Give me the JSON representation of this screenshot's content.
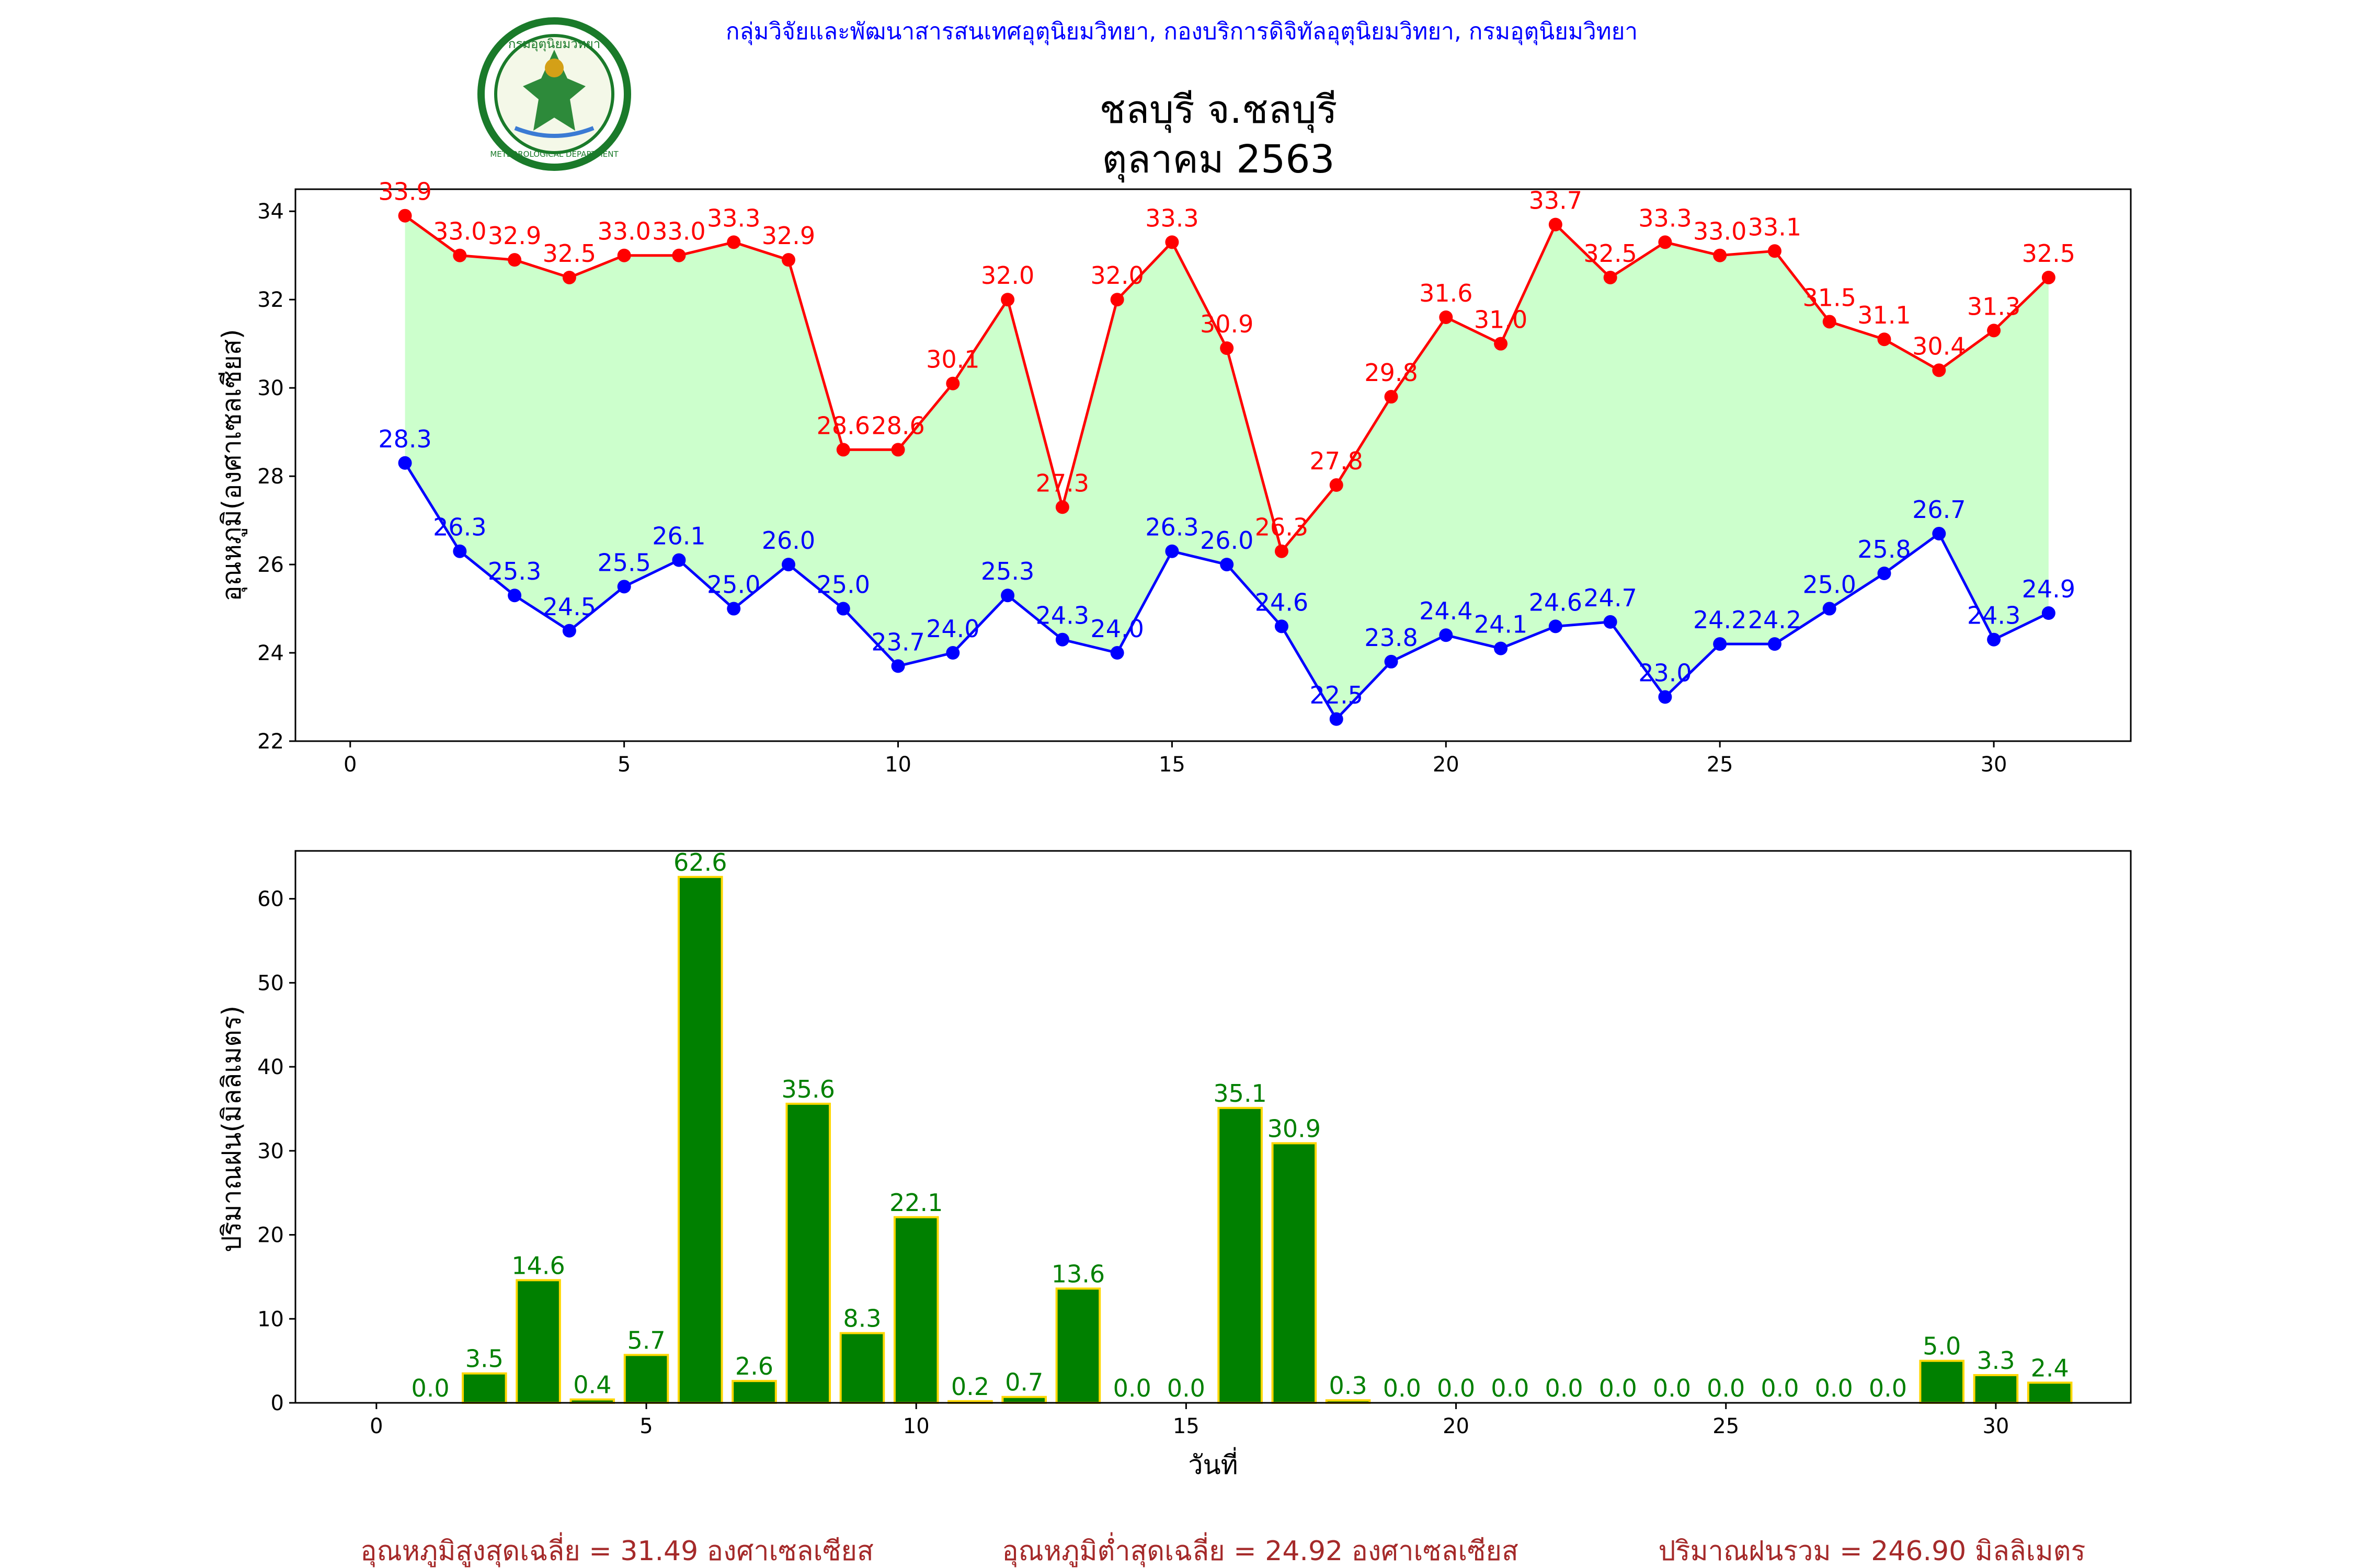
{
  "header": {
    "agency": "กลุ่มวิจัยและพัฒนาสารสนเทศอุตุนิยมวิทยา, กองบริการดิจิทัลอุตุนิยมวิทยา, กรมอุตุนิยมวิทยา",
    "title_line1": "ชลบุรี จ.ชลบุรี",
    "title_line2": "ตุลาคม 2563",
    "logo_top_text": "กรมอุตุนิยมวิทยา",
    "logo_bottom_text": "METEOROLOGICAL DEPARTMENT"
  },
  "colors": {
    "max_temp": "#ff0000",
    "min_temp": "#0000ff",
    "fill": "#ccffcc",
    "rain_bar": "#008000",
    "rain_edge": "#ffd700",
    "rain_label": "#008000",
    "footer": "#a52a2a",
    "agency": "#0000ff"
  },
  "chart_data": [
    {
      "type": "line",
      "ylabel": "อุณหภูมิ(องศาเซลเซียส)",
      "xlim": [
        -1,
        32.5
      ],
      "ylim": [
        22,
        34.5
      ],
      "xticks": [
        0,
        5,
        10,
        15,
        20,
        25,
        30
      ],
      "yticks": [
        22,
        24,
        26,
        28,
        30,
        32,
        34
      ],
      "x": [
        1,
        2,
        3,
        4,
        5,
        6,
        7,
        8,
        9,
        10,
        11,
        12,
        13,
        14,
        15,
        16,
        17,
        18,
        19,
        20,
        21,
        22,
        23,
        24,
        25,
        26,
        27,
        28,
        29,
        30,
        31
      ],
      "series": [
        {
          "key": "max",
          "values": [
            33.9,
            33.0,
            32.9,
            32.5,
            33.0,
            33.0,
            33.3,
            32.9,
            28.6,
            28.6,
            30.1,
            32.0,
            27.3,
            32.0,
            33.3,
            30.9,
            26.3,
            27.8,
            29.8,
            31.6,
            31.0,
            33.7,
            32.5,
            33.3,
            33.0,
            33.1,
            31.5,
            31.1,
            30.4,
            31.3,
            32.5
          ]
        },
        {
          "key": "min",
          "values": [
            28.3,
            26.3,
            25.3,
            24.5,
            25.5,
            26.1,
            25.0,
            26.0,
            25.0,
            23.7,
            24.0,
            25.3,
            24.3,
            24.0,
            26.3,
            26.0,
            24.6,
            22.5,
            23.8,
            24.4,
            24.1,
            24.6,
            24.7,
            23.0,
            24.2,
            24.2,
            25.0,
            25.8,
            26.7,
            24.3,
            24.9
          ]
        }
      ]
    },
    {
      "type": "bar",
      "ylabel": "ปริมาณฝน(มิลลิเมตร)",
      "xlabel": "วันที่",
      "xlim": [
        -1.5,
        32.5
      ],
      "ylim": [
        0,
        65.7
      ],
      "xticks": [
        0,
        5,
        10,
        15,
        20,
        25,
        30
      ],
      "yticks": [
        0,
        10,
        20,
        30,
        40,
        50,
        60
      ],
      "x": [
        1,
        2,
        3,
        4,
        5,
        6,
        7,
        8,
        9,
        10,
        11,
        12,
        13,
        14,
        15,
        16,
        17,
        18,
        19,
        20,
        21,
        22,
        23,
        24,
        25,
        26,
        27,
        28,
        29,
        30,
        31
      ],
      "values": [
        0.0,
        3.5,
        14.6,
        0.4,
        5.7,
        62.6,
        2.6,
        35.6,
        8.3,
        22.1,
        0.2,
        0.7,
        13.6,
        0.0,
        0.0,
        35.1,
        30.9,
        0.3,
        0.0,
        0.0,
        0.0,
        0.0,
        0.0,
        0.0,
        0.0,
        0.0,
        0.0,
        0.0,
        5.0,
        3.3,
        2.4
      ]
    }
  ],
  "footer": {
    "avg_max": "อุณหภูมิสูงสุดเฉลี่ย = 31.49 องศาเซลเซียส",
    "avg_min": "อุณหภูมิต่ำสุดเฉลี่ย = 24.92 องศาเซลเซียส",
    "total_rain": "ปริมาณฝนรวม = 246.90 มิลลิเมตร"
  }
}
